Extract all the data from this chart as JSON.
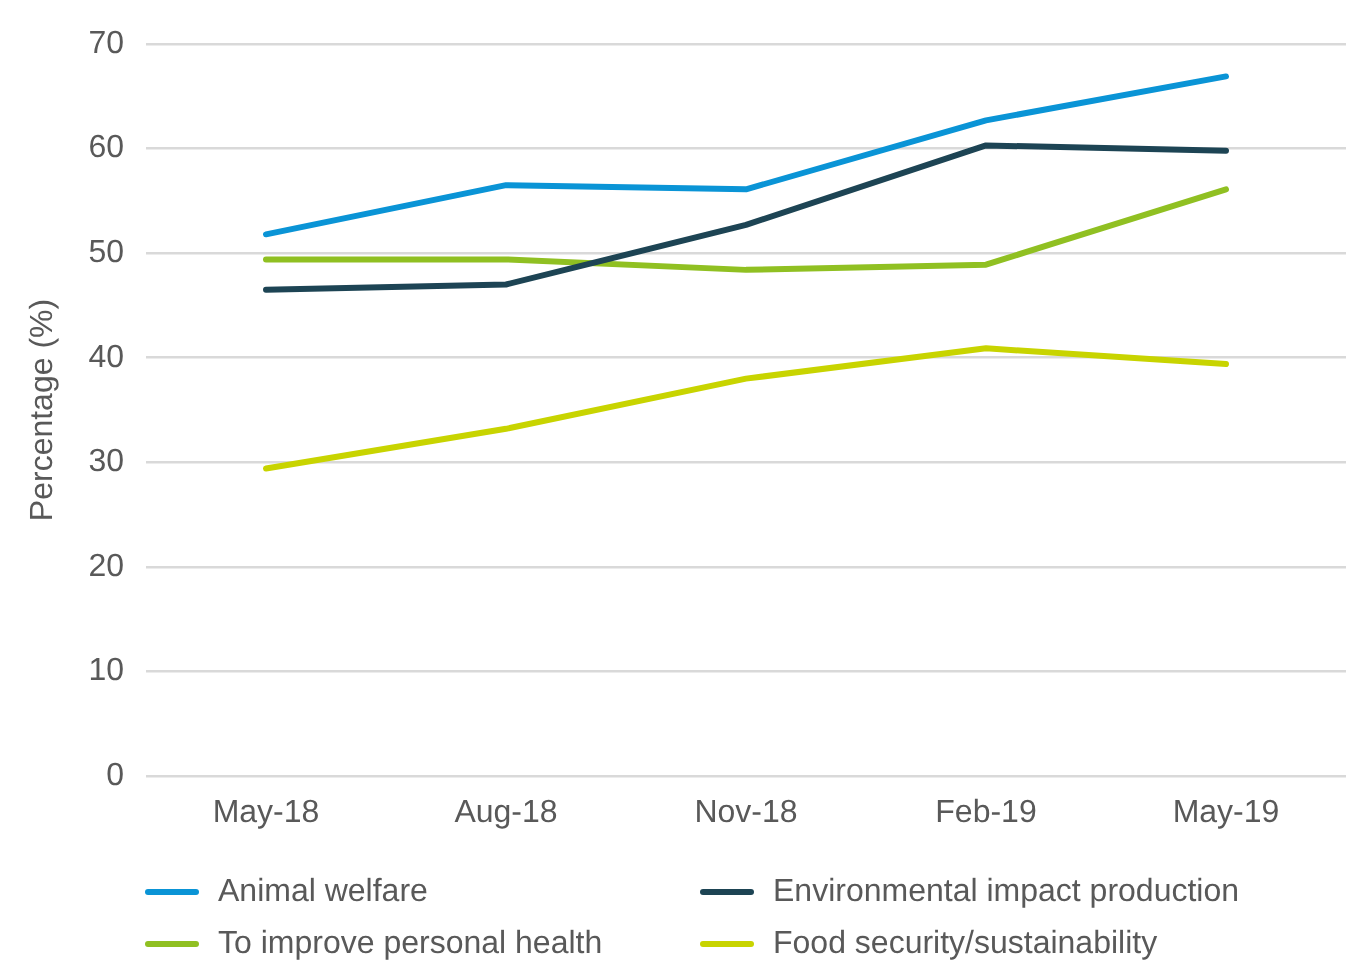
{
  "chart_data": {
    "type": "line",
    "categories": [
      "May-18",
      "Aug-18",
      "Nov-18",
      "Feb-19",
      "May-19"
    ],
    "series": [
      {
        "name": "Animal welfare",
        "color": "#0a94d6",
        "values": [
          51.8,
          56.5,
          56.1,
          62.7,
          66.9
        ]
      },
      {
        "name": "Environmental impact production",
        "color": "#1d4454",
        "values": [
          46.5,
          47.0,
          52.7,
          60.3,
          59.8
        ]
      },
      {
        "name": "To improve personal health",
        "color": "#90c022",
        "values": [
          49.4,
          49.4,
          48.4,
          48.9,
          56.1
        ]
      },
      {
        "name": "Food security/sustainability",
        "color": "#c8d400",
        "values": [
          29.4,
          33.2,
          38.0,
          40.9,
          39.4
        ]
      }
    ],
    "ylabel": "Percentage (%)",
    "ylim": [
      0,
      70
    ],
    "yticks": [
      0,
      10,
      20,
      30,
      40,
      50,
      60,
      70
    ],
    "grid": "y",
    "legend": "bottom",
    "marker": "none",
    "line_style": "solid"
  }
}
